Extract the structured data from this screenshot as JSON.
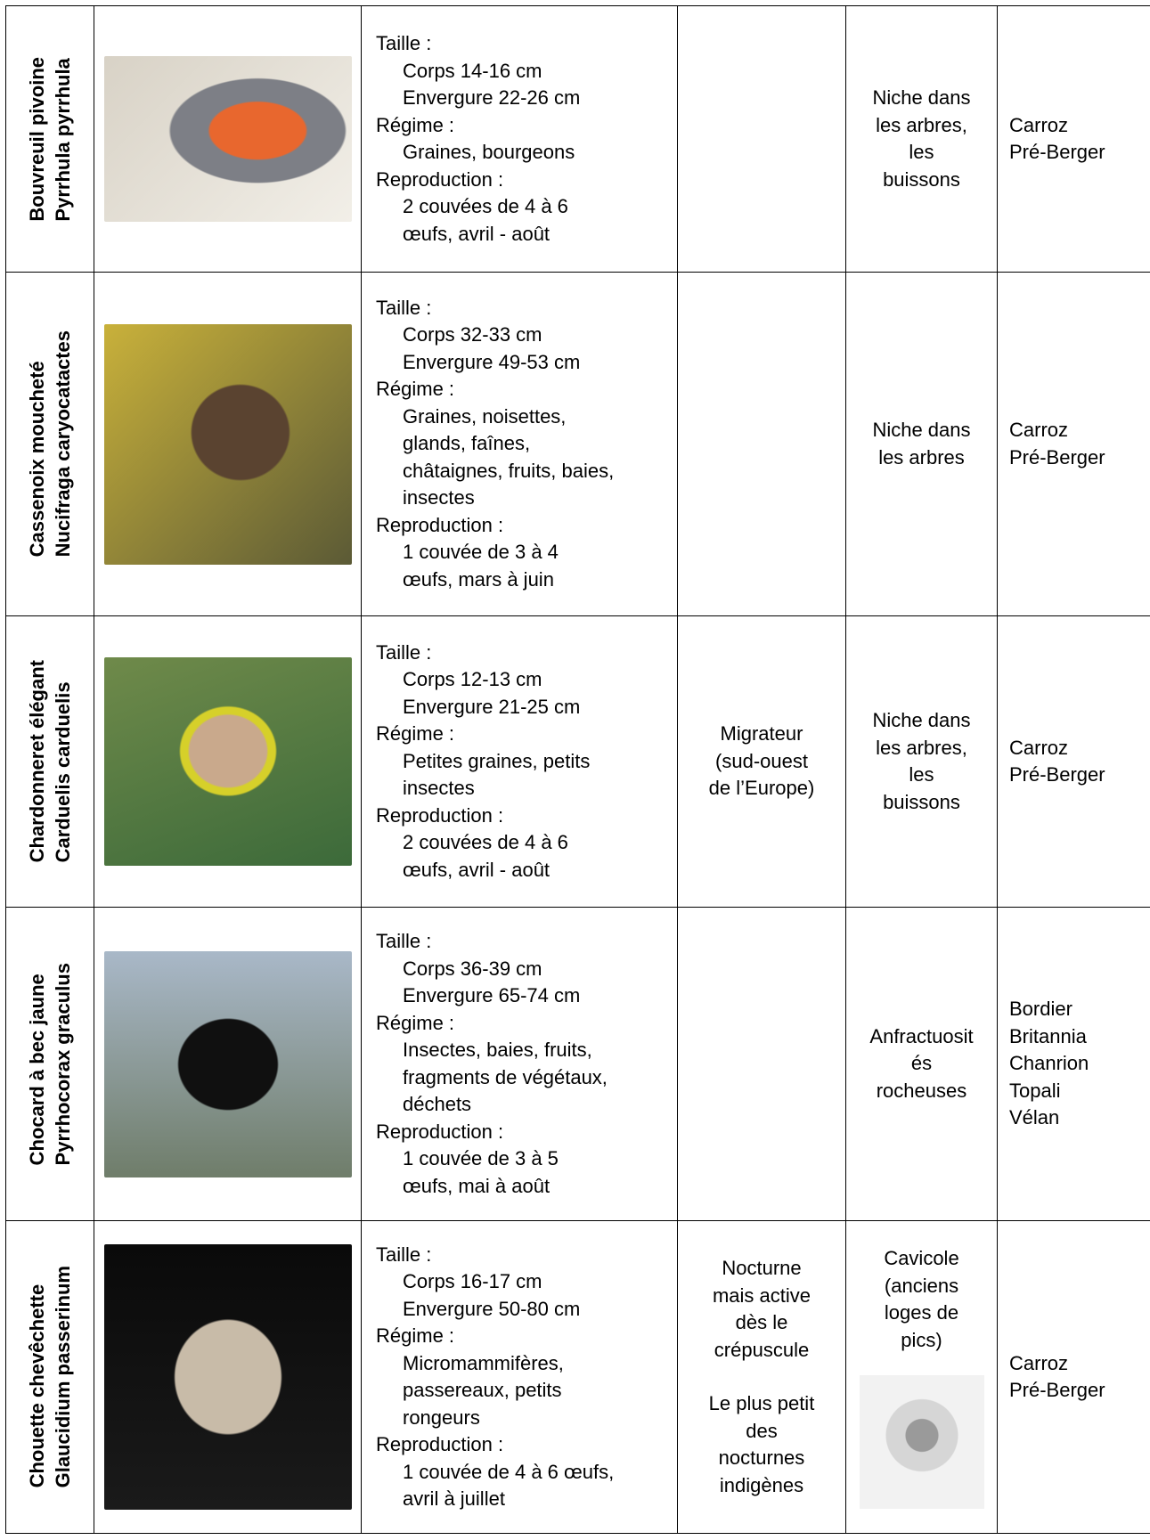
{
  "rows": [
    {
      "common_name": "Bouvreuil pivoine",
      "latin_name": "Pyrrhula pyrrhula",
      "description": [
        {
          "heading": "Taille :",
          "lines": [
            "Corps 14-16 cm",
            "Envergure 22-26 cm"
          ]
        },
        {
          "heading": "Régime :",
          "lines": [
            "Graines, bourgeons"
          ]
        },
        {
          "heading": "Reproduction :",
          "lines": [
            "2 couvées de 4 à 6",
            "œufs, avril - août"
          ]
        }
      ],
      "behavior": [],
      "nest": [
        "Niche dans",
        "les arbres,",
        "les",
        "buissons"
      ],
      "locations": [
        "Carroz",
        "Pré-Berger"
      ]
    },
    {
      "common_name": "Cassenoix moucheté",
      "latin_name": "Nucifraga caryocatactes",
      "description": [
        {
          "heading": "Taille :",
          "lines": [
            "Corps 32-33 cm",
            "Envergure 49-53 cm"
          ]
        },
        {
          "heading": "Régime :",
          "lines": [
            "Graines, noisettes,",
            "glands, faînes,",
            "châtaignes, fruits, baies,",
            "insectes"
          ]
        },
        {
          "heading": "Reproduction :",
          "lines": [
            "1 couvée de 3 à 4",
            "œufs,  mars à juin"
          ]
        }
      ],
      "behavior": [],
      "nest": [
        "Niche dans",
        "les arbres"
      ],
      "locations": [
        "Carroz",
        "Pré-Berger"
      ]
    },
    {
      "common_name": "Chardonneret élégant",
      "latin_name": "Carduelis carduelis",
      "description": [
        {
          "heading": "Taille :",
          "lines": [
            "Corps 12-13 cm",
            "Envergure 21-25 cm"
          ]
        },
        {
          "heading": "Régime :",
          "lines": [
            "Petites graines, petits",
            "insectes"
          ]
        },
        {
          "heading": "Reproduction :",
          "lines": [
            "2 couvées de 4 à 6",
            "œufs, avril - août"
          ]
        }
      ],
      "behavior": [
        [
          "Migrateur",
          "(sud-ouest",
          "de l’Europe)"
        ]
      ],
      "nest": [
        "Niche dans",
        "les arbres,",
        "les",
        "buissons"
      ],
      "locations": [
        "Carroz",
        "Pré-Berger"
      ]
    },
    {
      "common_name": "Chocard à bec jaune",
      "latin_name": "Pyrrhocorax graculus",
      "description": [
        {
          "heading": "Taille :",
          "lines": [
            "Corps 36-39 cm",
            "Envergure 65-74 cm"
          ]
        },
        {
          "heading": "Régime :",
          "lines": [
            "Insectes, baies, fruits,",
            "fragments de végétaux,",
            "déchets"
          ]
        },
        {
          "heading": "Reproduction :",
          "lines": [
            "1 couvée de 3 à 5",
            "œufs, mai à août"
          ]
        }
      ],
      "behavior": [],
      "nest": [
        "Anfractuosit",
        "és",
        "rocheuses"
      ],
      "locations": [
        "Bordier",
        "Britannia",
        "Chanrion",
        "Topali",
        "Vélan"
      ]
    },
    {
      "common_name": "Chouette chevêchette",
      "latin_name": "Glaucidium passerinum",
      "description": [
        {
          "heading": "Taille :",
          "lines": [
            "Corps 16-17 cm",
            "Envergure 50-80 cm"
          ]
        },
        {
          "heading": "Régime :",
          "lines": [
            "Micromammifères,",
            "passereaux, petits",
            "rongeurs"
          ]
        },
        {
          "heading": "Reproduction :",
          "lines": [
            "1 couvée de 4 à 6 œufs,",
            "avril à juillet"
          ]
        }
      ],
      "behavior": [
        [
          "Nocturne",
          "mais active",
          "dès le",
          "crépuscule"
        ],
        [
          "Le plus petit",
          "des",
          "nocturnes",
          "indigènes"
        ]
      ],
      "nest": [
        "Cavicole",
        "(anciens",
        "loges de",
        "pics)"
      ],
      "locations": [
        "Carroz",
        "Pré-Berger"
      ]
    }
  ]
}
